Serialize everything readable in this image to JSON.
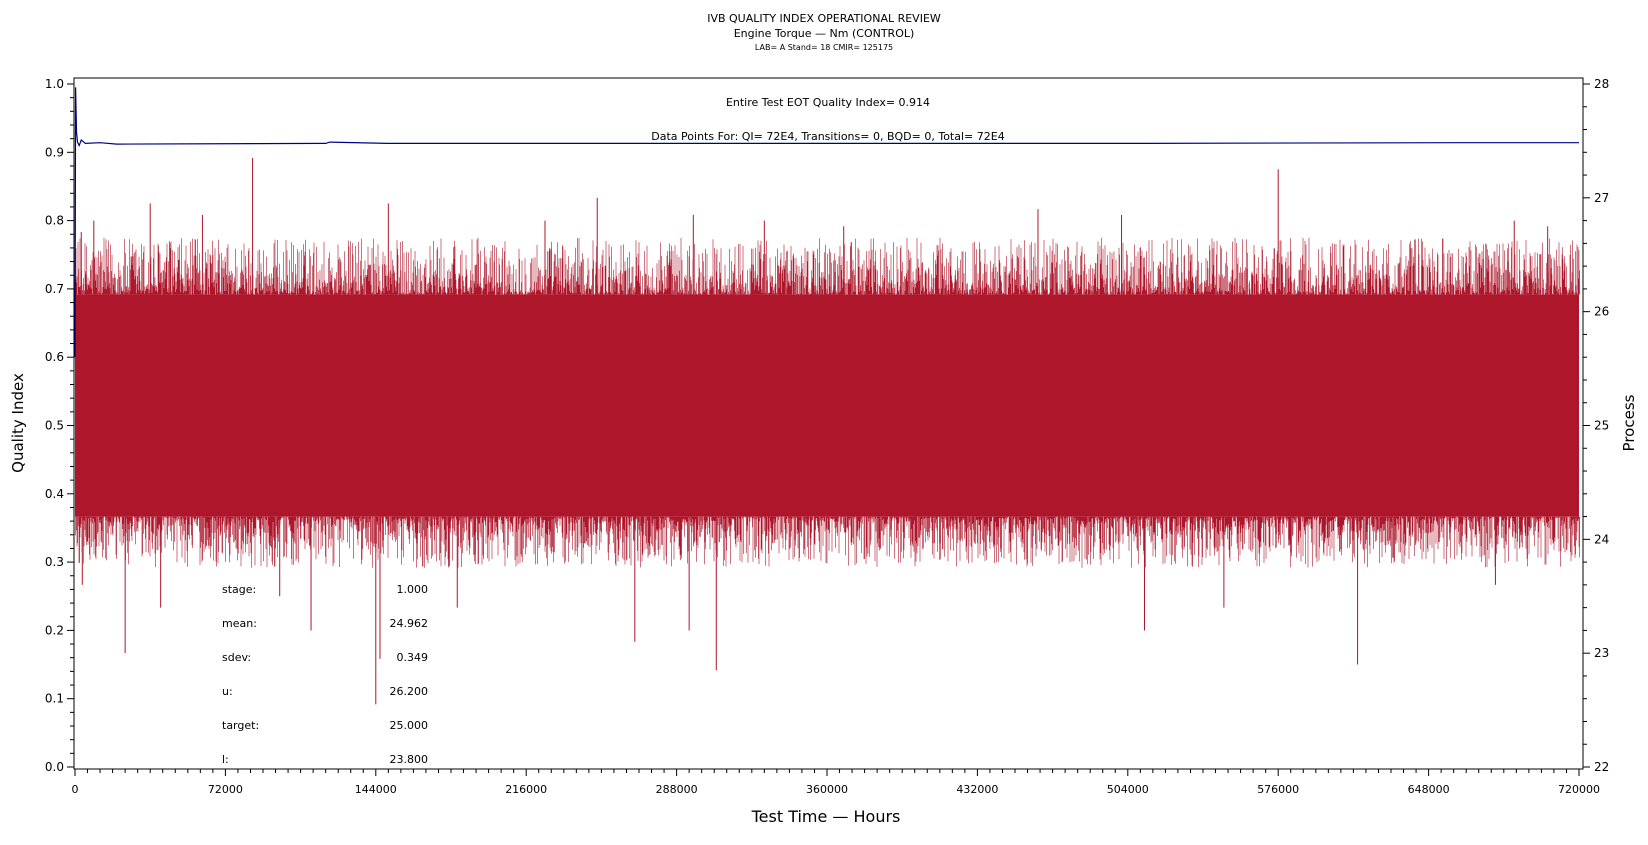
{
  "chart_data": {
    "type": "line",
    "title": "IVB QUALITY INDEX OPERATIONAL REVIEW",
    "subtitle": "Engine Torque — Nm (CONTROL)",
    "subtitle2": "LAB= A Stand= 18 CMIR= 125175",
    "xlabel": "Test Time — Hours",
    "ylabel": "Quality Index",
    "y2label": "Process",
    "xlim": [
      0,
      720000
    ],
    "ylim": [
      0.0,
      1.0
    ],
    "y2lim": [
      22,
      28
    ],
    "x_ticks": [
      "0",
      "72000",
      "144000",
      "216000",
      "288000",
      "360000",
      "432000",
      "504000",
      "576000",
      "648000",
      "720000"
    ],
    "y_ticks": [
      "0.0",
      "0.1",
      "0.2",
      "0.3",
      "0.4",
      "0.5",
      "0.6",
      "0.7",
      "0.8",
      "0.9",
      "1.0"
    ],
    "y2_ticks": [
      "22",
      "23",
      "24",
      "25",
      "26",
      "27",
      "28"
    ],
    "annotation_qi": "Entire Test EOT Quality Index=   0.914",
    "annotation_points": "Data Points For: QI=  72E4, Transitions=     0, BQD=     0, Total=  72E4",
    "series": [
      {
        "axis": "right",
        "color": "#ae172b",
        "description_values": {
          "band_low": 24.2,
          "band_high": 26.15,
          "typical_min": 23.9,
          "typical_max": 26.5
        },
        "spikes_high": [
          {
            "x": 3000,
            "y": 26.7
          },
          {
            "x": 9000,
            "y": 26.8
          },
          {
            "x": 36000,
            "y": 26.95
          },
          {
            "x": 61000,
            "y": 26.85
          },
          {
            "x": 85000,
            "y": 27.35
          },
          {
            "x": 150000,
            "y": 26.95
          },
          {
            "x": 225000,
            "y": 26.8
          },
          {
            "x": 250000,
            "y": 27.0
          },
          {
            "x": 296000,
            "y": 26.85
          },
          {
            "x": 330000,
            "y": 26.8
          },
          {
            "x": 368000,
            "y": 26.75
          },
          {
            "x": 461000,
            "y": 26.9
          },
          {
            "x": 501000,
            "y": 26.85
          },
          {
            "x": 576000,
            "y": 27.25
          },
          {
            "x": 689000,
            "y": 26.8
          },
          {
            "x": 705000,
            "y": 26.75
          }
        ],
        "spikes_low": [
          {
            "x": 3500,
            "y": 23.6
          },
          {
            "x": 24000,
            "y": 23.0
          },
          {
            "x": 41000,
            "y": 23.4
          },
          {
            "x": 98000,
            "y": 23.5
          },
          {
            "x": 113000,
            "y": 23.2
          },
          {
            "x": 144000,
            "y": 22.55
          },
          {
            "x": 146000,
            "y": 22.95
          },
          {
            "x": 183000,
            "y": 23.4
          },
          {
            "x": 268000,
            "y": 23.1
          },
          {
            "x": 294000,
            "y": 23.2
          },
          {
            "x": 307000,
            "y": 22.85
          },
          {
            "x": 512000,
            "y": 23.2
          },
          {
            "x": 550000,
            "y": 23.4
          },
          {
            "x": 614000,
            "y": 22.9
          },
          {
            "x": 680000,
            "y": 23.6
          }
        ]
      },
      {
        "axis": "left",
        "color": "#00008b",
        "points": [
          {
            "x": 0,
            "y": 0.6
          },
          {
            "x": 300,
            "y": 0.995
          },
          {
            "x": 700,
            "y": 0.93
          },
          {
            "x": 1200,
            "y": 0.915
          },
          {
            "x": 2000,
            "y": 0.91
          },
          {
            "x": 3000,
            "y": 0.918
          },
          {
            "x": 5000,
            "y": 0.913
          },
          {
            "x": 12000,
            "y": 0.914
          },
          {
            "x": 20000,
            "y": 0.912
          },
          {
            "x": 120000,
            "y": 0.913
          },
          {
            "x": 122000,
            "y": 0.915
          },
          {
            "x": 150000,
            "y": 0.913
          },
          {
            "x": 500000,
            "y": 0.913
          },
          {
            "x": 660000,
            "y": 0.914
          },
          {
            "x": 720000,
            "y": 0.914
          }
        ]
      }
    ]
  },
  "stats": [
    {
      "label": "stage:",
      "value": "1.000"
    },
    {
      "label": "mean:",
      "value": "24.962"
    },
    {
      "label": "sdev:",
      "value": "0.349"
    },
    {
      "label": "u:",
      "value": "26.200"
    },
    {
      "label": "target:",
      "value": "25.000"
    },
    {
      "label": "l:",
      "value": "23.800"
    }
  ],
  "colors": {
    "process": "#ae172b",
    "quality": "#00008b",
    "axis": "#000000"
  }
}
